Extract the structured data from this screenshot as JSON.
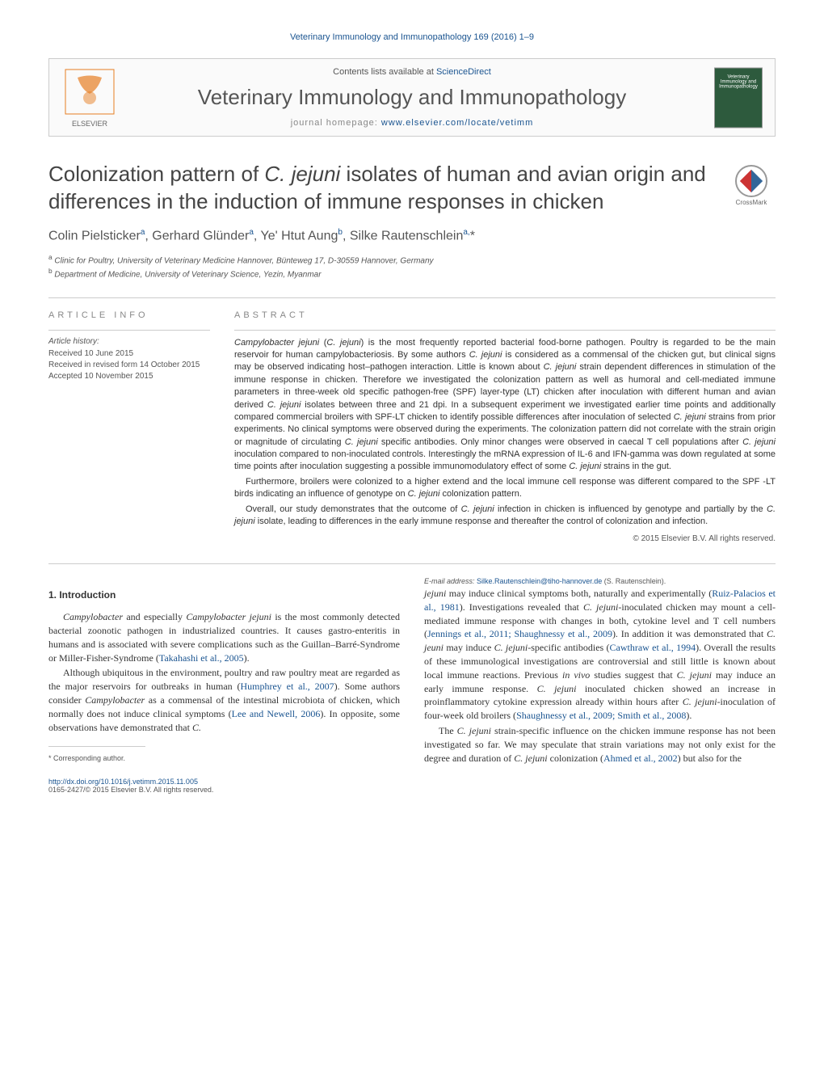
{
  "header": {
    "citation": "Veterinary Immunology and Immunopathology 169 (2016) 1–9"
  },
  "contentsBox": {
    "contents_prefix": "Contents lists available at ",
    "contents_link": "ScienceDirect",
    "journal_name": "Veterinary Immunology and Immunopathology",
    "homepage_prefix": "journal homepage: ",
    "homepage_link": "www.elsevier.com/locate/vetimm",
    "elsevier_label": "ELSEVIER",
    "cover_text": "Veterinary Immunology and Immunopathology"
  },
  "article": {
    "title_html": "Colonization pattern of <em>C. jejuni</em> isolates of human and avian origin and differences in the induction of immune responses in chicken",
    "crossmark_label": "CrossMark",
    "authors_html": "Colin Pielsticker<sup>a</sup>, Gerhard Glünder<sup>a</sup>, Ye' Htut Aung<sup>b</sup>, Silke Rautenschlein<sup>a,</sup>*",
    "affiliations": [
      {
        "sup": "a",
        "text": "Clinic for Poultry, University of Veterinary Medicine Hannover, Bünteweg 17, D-30559 Hannover, Germany"
      },
      {
        "sup": "b",
        "text": "Department of Medicine, University of Veterinary Science, Yezin, Myanmar"
      }
    ]
  },
  "articleInfo": {
    "heading": "article info",
    "history_label": "Article history:",
    "received": "Received 10 June 2015",
    "revised": "Received in revised form 14 October 2015",
    "accepted": "Accepted 10 November 2015"
  },
  "abstract": {
    "heading": "abstract",
    "paragraphs": [
      "<em>Campylobacter jejuni</em> (<em>C. jejuni</em>) is the most frequently reported bacterial food-borne pathogen. Poultry is regarded to be the main reservoir for human campylobacteriosis. By some authors <em>C. jejuni</em> is considered as a commensal of the chicken gut, but clinical signs may be observed indicating host–pathogen interaction. Little is known about <em>C. jejuni</em> strain dependent differences in stimulation of the immune response in chicken. Therefore we investigated the colonization pattern as well as humoral and cell-mediated immune parameters in three-week old specific pathogen-free (SPF) layer-type (LT) chicken after inoculation with different human and avian derived <em>C. jejuni</em> isolates between three and 21 dpi. In a subsequent experiment we investigated earlier time points and additionally compared commercial broilers with SPF-LT chicken to identify possible differences after inoculation of selected <em>C. jejuni</em> strains from prior experiments. No clinical symptoms were observed during the experiments. The colonization pattern did not correlate with the strain origin or magnitude of circulating <em>C. jejuni</em> specific antibodies. Only minor changes were observed in caecal T cell populations after <em>C. jejuni</em> inoculation compared to non-inoculated controls. Interestingly the mRNA expression of IL-6 and IFN-gamma was down regulated at some time points after inoculation suggesting a possible immunomodulatory effect of some <em>C. jejuni</em> strains in the gut.",
      "Furthermore, broilers were colonized to a higher extend and the local immune cell response was different compared to the SPF -LT birds indicating an influence of genotype on <em>C. jejuni</em> colonization pattern.",
      "Overall, our study demonstrates that the outcome of <em>C. jejuni</em> infection in chicken is influenced by genotype and partially by the <em>C. jejuni</em> isolate, leading to differences in the early immune response and thereafter the control of colonization and infection."
    ],
    "copyright": "© 2015 Elsevier B.V. All rights reserved."
  },
  "body": {
    "section1_heading": "1. Introduction",
    "p1": "<em>Campylobacter</em> and especially <em>Campylobacter jejuni</em> is the most commonly detected bacterial zoonotic pathogen in industrialized countries. It causes gastro-enteritis in humans and is associated with severe complications such as the Guillan–Barré-Syndrome or Miller-Fisher-Syndrome (<span class=\"cite\">Takahashi et al., 2005</span>).",
    "p2": "Although ubiquitous in the environment, poultry and raw poultry meat are regarded as the major reservoirs for outbreaks in human (<span class=\"cite\">Humphrey et al., 2007</span>). Some authors consider <em>Campylobacter</em> as a commensal of the intestinal microbiota of chicken, which normally does not induce clinical symptoms (<span class=\"cite\">Lee and Newell, 2006</span>). In opposite, some observations have demonstrated that <em>C.</em>",
    "p3": "<em>jejuni</em> may induce clinical symptoms both, naturally and experimentally (<span class=\"cite\">Ruiz-Palacios et al., 1981</span>). Investigations revealed that <em>C. jejuni</em>-inoculated chicken may mount a cell-mediated immune response with changes in both, cytokine level and T cell numbers (<span class=\"cite\">Jennings et al., 2011; Shaughnessy et al., 2009</span>). In addition it was demonstrated that <em>C. jeuni</em> may induce <em>C. jejuni</em>-specific antibodies (<span class=\"cite\">Cawthraw et al., 1994</span>). Overall the results of these immunological investigations are controversial and still little is known about local immune reactions. Previous <em>in vivo</em> studies suggest that <em>C. jejuni</em> may induce an early immune response. <em>C. jejuni</em> inoculated chicken showed an increase in proinflammatory cytokine expression already within hours after <em>C. jejuni</em>-inoculation of four-week old broilers (<span class=\"cite\">Shaughnessy et al., 2009; Smith et al., 2008</span>).",
    "p4": "The <em>C. jejuni</em> strain-specific influence on the chicken immune response has not been investigated so far. We may speculate that strain variations may not only exist for the degree and duration of <em>C. jejuni</em> colonization (<span class=\"cite\">Ahmed et al., 2002</span>) but also for the"
  },
  "footnote": {
    "corresponding": "* Corresponding author.",
    "email_label": "E-mail address: ",
    "email": "Silke.Rautenschlein@tiho-hannover.de",
    "email_suffix": " (S. Rautenschlein)."
  },
  "footer": {
    "doi": "http://dx.doi.org/10.1016/j.vetimm.2015.11.005",
    "issn_copyright": "0165-2427/© 2015 Elsevier B.V. All rights reserved."
  }
}
